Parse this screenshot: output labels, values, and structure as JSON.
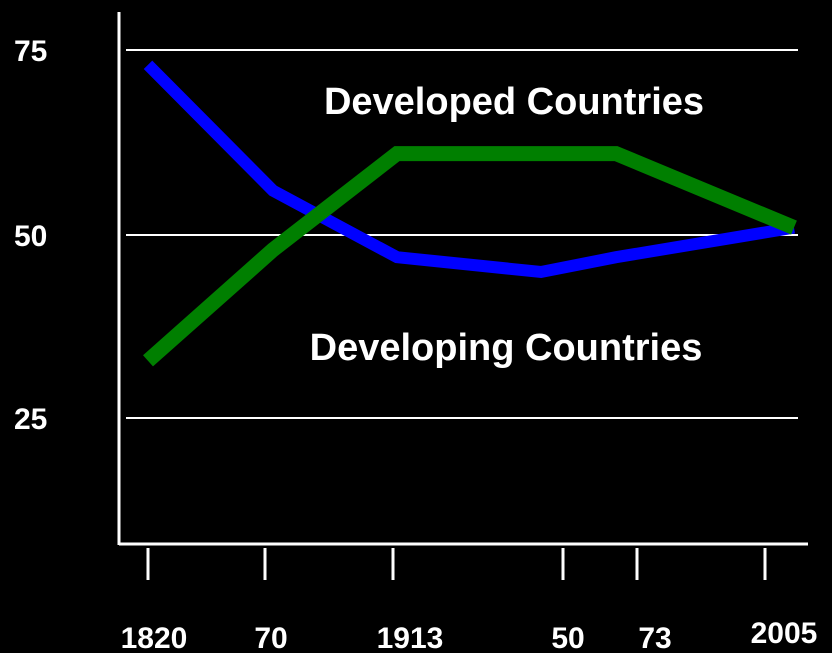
{
  "chart_data": {
    "type": "line",
    "title": "",
    "xlabel": "",
    "ylabel": "",
    "x": [
      1820,
      1870,
      1913,
      1950,
      1973,
      2005
    ],
    "x_tick_labels": [
      "1820",
      "70",
      "1913",
      "50",
      "73",
      "2005"
    ],
    "y_ticks": [
      25,
      50,
      75
    ],
    "y_tick_labels": [
      "25",
      "50",
      "75"
    ],
    "ylim": [
      15,
      78
    ],
    "grid": true,
    "series": [
      {
        "name": "Developed Countries",
        "color": "#007f00",
        "values": [
          33,
          48,
          61,
          61,
          61,
          51
        ]
      },
      {
        "name": "Developing Countries",
        "color": "#0000ff",
        "values": [
          73,
          56,
          47,
          45,
          47,
          51
        ]
      }
    ],
    "annotations": [
      "Developed Countries",
      "Developing Countries"
    ]
  }
}
